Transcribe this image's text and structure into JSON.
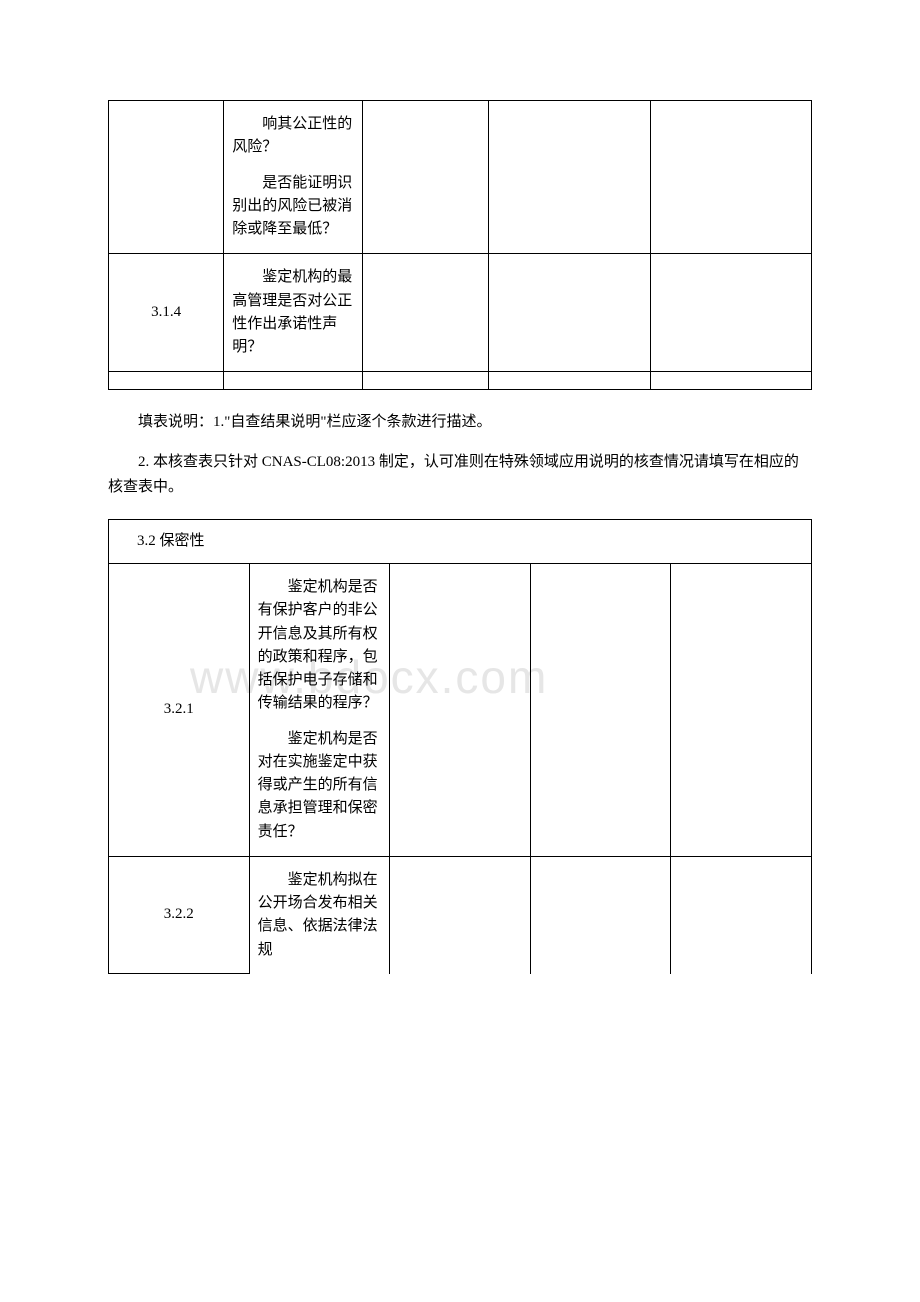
{
  "table1": {
    "rows": [
      {
        "id": "",
        "questions": [
          "响其公正性的风险？",
          "是否能证明识别出的风险已被消除或降至最低？"
        ]
      },
      {
        "id": "3.1.4",
        "questions": [
          "鉴定机构的最高管理是否对公正性作出承诺性声明？"
        ]
      }
    ]
  },
  "notes": {
    "note1": "填表说明：1.\"自查结果说明\"栏应逐个条款进行描述。",
    "note2": "2. 本核查表只针对 CNAS-CL08:2013 制定，认可准则在特殊领域应用说明的核查情况请填写在相应的核查表中。"
  },
  "table2": {
    "header": "3.2 保密性",
    "rows": [
      {
        "id": "3.2.1",
        "questions": [
          "鉴定机构是否有保护客户的非公开信息及其所有权的政策和程序，包括保护电子存储和传输结果的程序？",
          "鉴定机构是否对在实施鉴定中获得或产生的所有信息承担管理和保密责任？"
        ]
      },
      {
        "id": "3.2.2",
        "questions": [
          "鉴定机构拟在公开场合发布相关信息、依据法律法规"
        ]
      }
    ]
  },
  "watermark": "www.bdocx.com",
  "colors": {
    "text": "#000000",
    "border": "#000000",
    "background": "#ffffff",
    "watermark": "#e6e6e6"
  }
}
